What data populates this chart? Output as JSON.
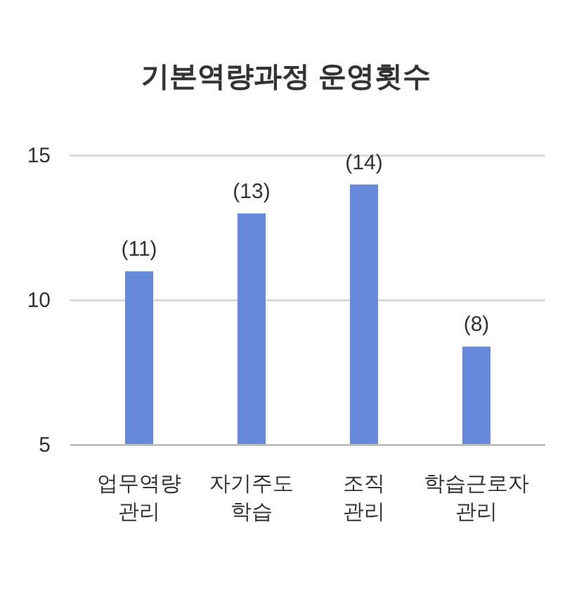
{
  "chart_data": {
    "type": "bar",
    "title": "기본역량과정 운영횟수",
    "categories": [
      "업무역량 관리",
      "자기주도 학습",
      "조직 관리",
      "학습근로자 관리"
    ],
    "values": [
      11,
      13,
      14,
      8.4
    ],
    "value_labels": [
      "(11)",
      "(13)",
      "(14)",
      "(8)"
    ],
    "color": "#6789d9",
    "ylim": [
      5,
      15
    ],
    "yticks": [
      5,
      10,
      15
    ],
    "grid": "y"
  }
}
